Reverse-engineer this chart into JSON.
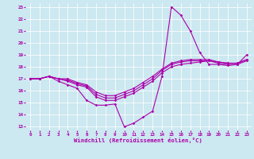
{
  "xlabel": "Windchill (Refroidissement éolien,°C)",
  "bg_color": "#cce8f0",
  "line_color": "#aa00aa",
  "grid_color": "#aaccdd",
  "xlim": [
    -0.5,
    23.5
  ],
  "ylim": [
    12.7,
    23.3
  ],
  "yticks": [
    13,
    14,
    15,
    16,
    17,
    18,
    19,
    20,
    21,
    22,
    23
  ],
  "xticks": [
    0,
    1,
    2,
    3,
    4,
    5,
    6,
    7,
    8,
    9,
    10,
    11,
    12,
    13,
    14,
    15,
    16,
    17,
    18,
    19,
    20,
    21,
    22,
    23
  ],
  "series": [
    [
      17.0,
      17.0,
      17.2,
      16.8,
      16.5,
      16.2,
      15.2,
      14.8,
      14.8,
      14.9,
      13.0,
      13.3,
      13.8,
      14.3,
      17.2,
      23.0,
      22.3,
      21.0,
      19.2,
      18.2,
      18.2,
      18.1,
      18.2,
      19.0
    ],
    [
      17.0,
      17.0,
      17.2,
      17.0,
      16.8,
      16.5,
      16.3,
      15.5,
      15.2,
      15.2,
      15.5,
      15.8,
      16.3,
      16.8,
      17.5,
      18.0,
      18.2,
      18.3,
      18.4,
      18.5,
      18.3,
      18.2,
      18.2,
      18.5
    ],
    [
      17.0,
      17.0,
      17.2,
      17.0,
      16.9,
      16.6,
      16.4,
      15.7,
      15.4,
      15.4,
      15.7,
      16.0,
      16.5,
      17.0,
      17.7,
      18.2,
      18.4,
      18.5,
      18.5,
      18.5,
      18.4,
      18.3,
      18.3,
      18.6
    ],
    [
      17.0,
      17.0,
      17.2,
      17.0,
      17.0,
      16.7,
      16.5,
      15.9,
      15.6,
      15.6,
      15.9,
      16.2,
      16.7,
      17.2,
      17.8,
      18.3,
      18.5,
      18.6,
      18.6,
      18.6,
      18.4,
      18.3,
      18.3,
      18.6
    ]
  ]
}
